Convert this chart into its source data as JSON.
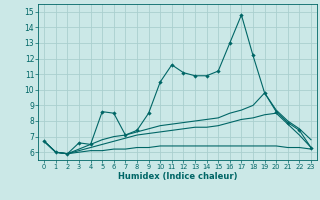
{
  "xlabel": "Humidex (Indice chaleur)",
  "background_color": "#cbe8e7",
  "grid_color": "#aacfcf",
  "line_color": "#006666",
  "xlim": [
    -0.5,
    23.5
  ],
  "ylim": [
    5.5,
    15.5
  ],
  "yticks": [
    6,
    7,
    8,
    9,
    10,
    11,
    12,
    13,
    14,
    15
  ],
  "xticks": [
    0,
    1,
    2,
    3,
    4,
    5,
    6,
    7,
    8,
    9,
    10,
    11,
    12,
    13,
    14,
    15,
    16,
    17,
    18,
    19,
    20,
    21,
    22,
    23
  ],
  "series1_x": [
    0,
    1,
    2,
    3,
    4,
    5,
    6,
    7,
    8,
    9,
    10,
    11,
    12,
    13,
    14,
    15,
    16,
    17,
    18,
    19,
    20,
    21,
    22,
    23
  ],
  "series1_y": [
    6.7,
    6.0,
    5.9,
    6.6,
    6.5,
    8.6,
    8.5,
    7.1,
    7.4,
    8.5,
    10.5,
    11.6,
    11.1,
    10.9,
    10.9,
    11.2,
    13.0,
    14.8,
    12.2,
    9.8,
    8.6,
    7.9,
    7.4,
    6.3
  ],
  "series2_y": [
    6.7,
    6.0,
    5.9,
    6.0,
    6.1,
    6.1,
    6.2,
    6.2,
    6.3,
    6.3,
    6.4,
    6.4,
    6.4,
    6.4,
    6.4,
    6.4,
    6.4,
    6.4,
    6.4,
    6.4,
    6.4,
    6.3,
    6.3,
    6.2
  ],
  "series3_y": [
    6.7,
    6.0,
    5.9,
    6.1,
    6.3,
    6.5,
    6.7,
    6.9,
    7.1,
    7.2,
    7.3,
    7.4,
    7.5,
    7.6,
    7.6,
    7.7,
    7.9,
    8.1,
    8.2,
    8.4,
    8.5,
    7.8,
    7.1,
    6.3
  ],
  "series4_y": [
    6.7,
    6.0,
    5.9,
    6.2,
    6.5,
    6.8,
    7.0,
    7.1,
    7.3,
    7.5,
    7.7,
    7.8,
    7.9,
    8.0,
    8.1,
    8.2,
    8.5,
    8.7,
    9.0,
    9.8,
    8.7,
    8.0,
    7.5,
    6.8
  ]
}
